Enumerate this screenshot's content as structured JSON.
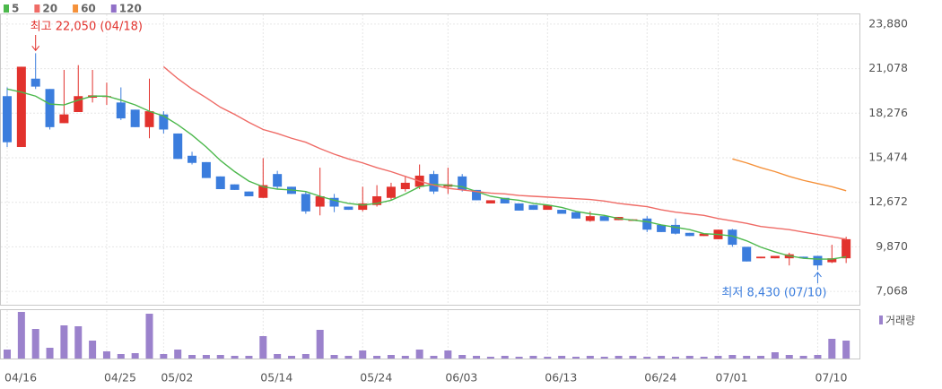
{
  "chart_data": {
    "type": "candlestick",
    "grid": true,
    "categories": [
      "04/16",
      null,
      null,
      null,
      null,
      null,
      null,
      "04/25",
      null,
      null,
      null,
      "05/02",
      null,
      null,
      null,
      null,
      null,
      null,
      "05/14",
      null,
      null,
      null,
      null,
      null,
      null,
      "05/24",
      null,
      null,
      null,
      null,
      null,
      "06/03",
      null,
      null,
      null,
      null,
      null,
      null,
      "06/13",
      null,
      null,
      null,
      null,
      null,
      null,
      "06/24",
      null,
      null,
      null,
      null,
      "07/01",
      null,
      null,
      null,
      null,
      null,
      null,
      "07/10",
      null,
      null
    ],
    "open": [
      19350,
      16150,
      20450,
      19800,
      17650,
      18350,
      19250,
      19350,
      18950,
      18500,
      17400,
      18200,
      17000,
      15600,
      15200,
      14300,
      13800,
      13350,
      12950,
      14450,
      13650,
      13200,
      12400,
      12950,
      12400,
      12200,
      12500,
      12950,
      13500,
      13650,
      14450,
      13650,
      14300,
      13450,
      12600,
      12950,
      12600,
      12500,
      12200,
      12200,
      12050,
      11500,
      11800,
      11550,
      11500,
      11650,
      11250,
      11250,
      10750,
      10550,
      10350,
      10950,
      9870,
      9150,
      9150,
      9150,
      9250,
      9300,
      8900,
      9150
    ],
    "high": [
      19900,
      21200,
      22050,
      19800,
      21000,
      21300,
      21000,
      20200,
      19900,
      18500,
      20450,
      18400,
      17000,
      15850,
      15200,
      14300,
      13800,
      13350,
      15450,
      14650,
      13650,
      13350,
      14850,
      13200,
      12400,
      13650,
      13750,
      13900,
      14300,
      15050,
      14650,
      14850,
      14450,
      13450,
      12800,
      12950,
      12600,
      12500,
      12500,
      12200,
      12050,
      12100,
      11800,
      11750,
      11600,
      11800,
      11250,
      11650,
      10750,
      10700,
      10950,
      11000,
      9870,
      9250,
      9300,
      9500,
      9250,
      9300,
      10000,
      10500
    ],
    "low": [
      16150,
      16150,
      19800,
      17250,
      17650,
      18350,
      18950,
      18800,
      17850,
      17400,
      16700,
      17000,
      15400,
      15050,
      14200,
      13500,
      13450,
      13050,
      12950,
      13500,
      13200,
      11950,
      11850,
      12050,
      12200,
      12100,
      12400,
      12800,
      13350,
      13500,
      13200,
      13200,
      13350,
      12800,
      12600,
      12600,
      12150,
      12200,
      12200,
      11950,
      11650,
      11450,
      11500,
      11550,
      11500,
      10800,
      10800,
      10650,
      10550,
      10550,
      10350,
      9870,
      8950,
      9150,
      9150,
      8700,
      9150,
      8430,
      8850,
      8850
    ],
    "close": [
      16450,
      21200,
      19950,
      17400,
      18200,
      19350,
      19400,
      19350,
      17950,
      17400,
      18400,
      17250,
      15400,
      15150,
      14200,
      13500,
      13450,
      13050,
      13750,
      13650,
      13200,
      12100,
      13050,
      12400,
      12200,
      12600,
      13050,
      13650,
      13900,
      14350,
      13350,
      13800,
      13450,
      12800,
      12800,
      12600,
      12150,
      12200,
      12500,
      11950,
      11650,
      11800,
      11500,
      11750,
      11600,
      10950,
      10800,
      10700,
      10550,
      10700,
      10950,
      10000,
      8950,
      9250,
      9300,
      9400,
      9150,
      8700,
      9150,
      10350
    ],
    "up_color": "#e2322d",
    "down_color": "#3b7ddd",
    "ylim": [
      6227,
      24552
    ],
    "yticks": [
      {
        "value": 7068,
        "label": "7,068"
      },
      {
        "value": 9870,
        "label": "9,870"
      },
      {
        "value": 12672,
        "label": "12,672"
      },
      {
        "value": 15474,
        "label": "15,474"
      },
      {
        "value": 18276,
        "label": "18,276"
      },
      {
        "value": 21078,
        "label": "21,078"
      },
      {
        "value": 23880,
        "label": "23,880"
      }
    ],
    "series": [
      {
        "name": "5",
        "color": "#4cb84c",
        "values": [
          19800,
          19600,
          19350,
          18850,
          18800,
          19100,
          19350,
          19350,
          19100,
          18800,
          18400,
          18100,
          17550,
          16900,
          16150,
          15300,
          14600,
          14000,
          13650,
          13500,
          13450,
          13350,
          13050,
          12800,
          12600,
          12500,
          12600,
          12800,
          13200,
          13650,
          13800,
          13750,
          13650,
          13350,
          13050,
          12900,
          12800,
          12600,
          12500,
          12350,
          12100,
          11950,
          11850,
          11650,
          11550,
          11450,
          11250,
          11100,
          10950,
          10700,
          10650,
          10550,
          10250,
          9850,
          9550,
          9300,
          9150,
          9100,
          9100,
          9250
        ]
      },
      {
        "name": "20",
        "color": "#ef6b66",
        "values": [
          null,
          null,
          null,
          null,
          null,
          null,
          null,
          null,
          null,
          null,
          null,
          21200,
          20450,
          19800,
          19250,
          18650,
          18200,
          17700,
          17250,
          17000,
          16700,
          16450,
          16050,
          15700,
          15400,
          15150,
          14850,
          14600,
          14300,
          14000,
          13750,
          13550,
          13450,
          13350,
          13250,
          13200,
          13100,
          13050,
          13000,
          12950,
          12900,
          12850,
          12750,
          12600,
          12500,
          12400,
          12200,
          12050,
          11950,
          11850,
          11650,
          11500,
          11350,
          11150,
          11050,
          10950,
          10800,
          10650,
          10500,
          10350
        ]
      },
      {
        "name": "60",
        "color": "#f5913a",
        "values": [
          null,
          null,
          null,
          null,
          null,
          null,
          null,
          null,
          null,
          null,
          null,
          null,
          null,
          null,
          null,
          null,
          null,
          null,
          null,
          null,
          null,
          null,
          null,
          null,
          null,
          null,
          null,
          null,
          null,
          null,
          null,
          null,
          null,
          null,
          null,
          null,
          null,
          null,
          null,
          null,
          null,
          null,
          null,
          null,
          null,
          null,
          null,
          null,
          null,
          null,
          null,
          15400,
          15150,
          14850,
          14600,
          14300,
          14050,
          13850,
          13650,
          13400
        ]
      },
      {
        "name": "120",
        "color": "#9170c8"
      }
    ],
    "volume": {
      "name": "거래량",
      "color": "#9b82cc",
      "ylim": [
        0,
        55
      ],
      "values": [
        10,
        52,
        33,
        12,
        37,
        36,
        20,
        8,
        5,
        6,
        50,
        5,
        10,
        4,
        4,
        4,
        3,
        3,
        25,
        5,
        3,
        5,
        32,
        4,
        3,
        9,
        3,
        4,
        3,
        10,
        3,
        9,
        4,
        3,
        2,
        3,
        2,
        3,
        2,
        3,
        2,
        3,
        2,
        3,
        3,
        2,
        3,
        2,
        3,
        2,
        3,
        4,
        3,
        3,
        7,
        4,
        3,
        4,
        22,
        20
      ]
    },
    "annotations": {
      "high": "최고 22,050 (04/18)",
      "low": "최저 8,430 (07/10)"
    }
  }
}
